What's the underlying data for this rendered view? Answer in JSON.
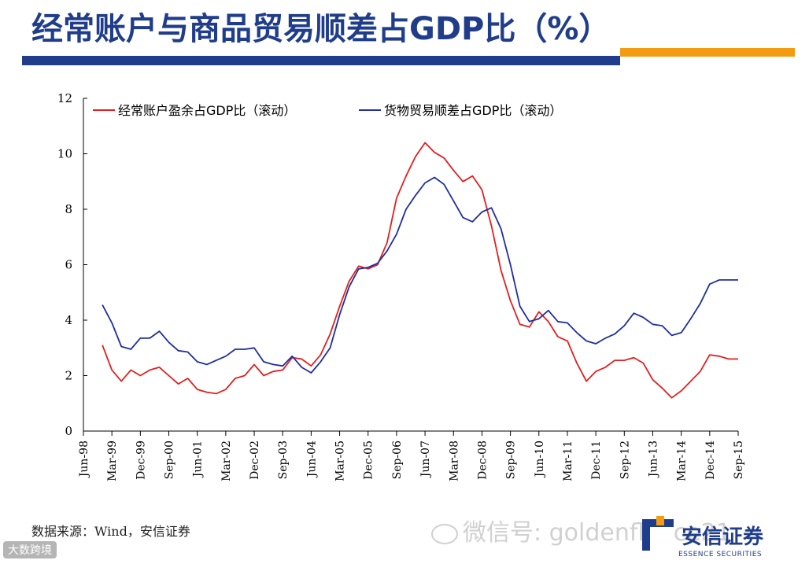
{
  "slide": {
    "title": "经常账户与商品贸易顺差占GDP比（%）",
    "source": "数据来源：Wind，安信证券",
    "watermark": "微信号: goldenfleece21",
    "logo_name": "安信证券",
    "logo_sub": "ESSENCE SECURITIES",
    "corner_badge": "大数跨境",
    "colors": {
      "brand_blue": "#1f3d8a",
      "accent_orange": "#f39c12"
    }
  },
  "chart_data": {
    "type": "line",
    "title": "",
    "xlabel": "",
    "ylabel": "",
    "ylim": [
      0,
      12
    ],
    "yticks": [
      0,
      2,
      4,
      6,
      8,
      10,
      12
    ],
    "x_start": "Jun-98",
    "x_end": "Sep-15",
    "x_tick_labels": [
      "Jun-98",
      "Mar-99",
      "Dec-99",
      "Sep-00",
      "Jun-01",
      "Mar-02",
      "Dec-02",
      "Sep-03",
      "Jun-04",
      "Mar-05",
      "Dec-05",
      "Sep-06",
      "Jun-07",
      "Mar-08",
      "Dec-08",
      "Sep-09",
      "Jun-10",
      "Mar-11",
      "Dec-11",
      "Sep-12",
      "Jun-13",
      "Mar-14",
      "Dec-14",
      "Sep-15"
    ],
    "grid": false,
    "legend_position": "top",
    "series": [
      {
        "name": "经常账户盈余占GDP比（滚动）",
        "color": "#e02020",
        "x": [
          "Dec-98",
          "Mar-99",
          "Jun-99",
          "Sep-99",
          "Dec-99",
          "Mar-00",
          "Jun-00",
          "Sep-00",
          "Dec-00",
          "Mar-01",
          "Jun-01",
          "Sep-01",
          "Dec-01",
          "Mar-02",
          "Jun-02",
          "Sep-02",
          "Dec-02",
          "Mar-03",
          "Jun-03",
          "Sep-03",
          "Dec-03",
          "Mar-04",
          "Jun-04",
          "Sep-04",
          "Dec-04",
          "Mar-05",
          "Jun-05",
          "Sep-05",
          "Dec-05",
          "Mar-06",
          "Jun-06",
          "Sep-06",
          "Dec-06",
          "Mar-07",
          "Jun-07",
          "Sep-07",
          "Dec-07",
          "Mar-08",
          "Jun-08",
          "Sep-08",
          "Dec-08",
          "Mar-09",
          "Jun-09",
          "Sep-09",
          "Dec-09",
          "Mar-10",
          "Jun-10",
          "Sep-10",
          "Dec-10",
          "Mar-11",
          "Jun-11",
          "Sep-11",
          "Dec-11",
          "Mar-12",
          "Jun-12",
          "Sep-12",
          "Dec-12",
          "Mar-13",
          "Jun-13",
          "Sep-13",
          "Dec-13",
          "Mar-14",
          "Jun-14",
          "Sep-14",
          "Dec-14",
          "Mar-15",
          "Jun-15",
          "Sep-15"
        ],
        "values": [
          3.1,
          2.2,
          1.8,
          2.2,
          2.0,
          2.2,
          2.3,
          2.0,
          1.7,
          1.9,
          1.5,
          1.4,
          1.35,
          1.5,
          1.9,
          2.0,
          2.4,
          2.0,
          2.15,
          2.2,
          2.65,
          2.6,
          2.35,
          2.75,
          3.5,
          4.5,
          5.4,
          5.95,
          5.85,
          6.0,
          6.8,
          8.4,
          9.2,
          9.9,
          10.4,
          10.05,
          9.85,
          9.4,
          9.0,
          9.2,
          8.7,
          7.4,
          5.8,
          4.7,
          3.85,
          3.75,
          4.3,
          3.95,
          3.4,
          3.25,
          2.45,
          1.8,
          2.15,
          2.3,
          2.55,
          2.55,
          2.65,
          2.45,
          1.85,
          1.55,
          1.2,
          1.45,
          1.8,
          2.15,
          2.75,
          2.7,
          2.6,
          2.6
        ]
      },
      {
        "name": "货物贸易顺差占GDP比（滚动）",
        "color": "#1f2e9e",
        "x": [
          "Dec-98",
          "Mar-99",
          "Jun-99",
          "Sep-99",
          "Dec-99",
          "Mar-00",
          "Jun-00",
          "Sep-00",
          "Dec-00",
          "Mar-01",
          "Jun-01",
          "Sep-01",
          "Dec-01",
          "Mar-02",
          "Jun-02",
          "Sep-02",
          "Dec-02",
          "Mar-03",
          "Jun-03",
          "Sep-03",
          "Dec-03",
          "Mar-04",
          "Jun-04",
          "Sep-04",
          "Dec-04",
          "Mar-05",
          "Jun-05",
          "Sep-05",
          "Dec-05",
          "Mar-06",
          "Jun-06",
          "Sep-06",
          "Dec-06",
          "Mar-07",
          "Jun-07",
          "Sep-07",
          "Dec-07",
          "Mar-08",
          "Jun-08",
          "Sep-08",
          "Dec-08",
          "Mar-09",
          "Jun-09",
          "Sep-09",
          "Dec-09",
          "Mar-10",
          "Jun-10",
          "Sep-10",
          "Dec-10",
          "Mar-11",
          "Jun-11",
          "Sep-11",
          "Dec-11",
          "Mar-12",
          "Jun-12",
          "Sep-12",
          "Dec-12",
          "Mar-13",
          "Jun-13",
          "Sep-13",
          "Dec-13",
          "Mar-14",
          "Jun-14",
          "Sep-14",
          "Dec-14",
          "Mar-15",
          "Jun-15",
          "Sep-15"
        ],
        "values": [
          4.55,
          3.9,
          3.05,
          2.95,
          3.35,
          3.35,
          3.6,
          3.2,
          2.9,
          2.85,
          2.5,
          2.4,
          2.55,
          2.7,
          2.95,
          2.95,
          3.0,
          2.5,
          2.4,
          2.35,
          2.7,
          2.3,
          2.1,
          2.5,
          3.0,
          4.2,
          5.2,
          5.85,
          5.9,
          6.05,
          6.5,
          7.1,
          8.0,
          8.5,
          8.95,
          9.15,
          8.9,
          8.3,
          7.7,
          7.55,
          7.9,
          8.05,
          7.3,
          6.0,
          4.5,
          3.95,
          4.05,
          4.35,
          3.95,
          3.9,
          3.55,
          3.25,
          3.15,
          3.35,
          3.5,
          3.8,
          4.25,
          4.1,
          3.85,
          3.8,
          3.45,
          3.55,
          4.05,
          4.6,
          5.3,
          5.45,
          5.45,
          5.45
        ]
      }
    ]
  }
}
